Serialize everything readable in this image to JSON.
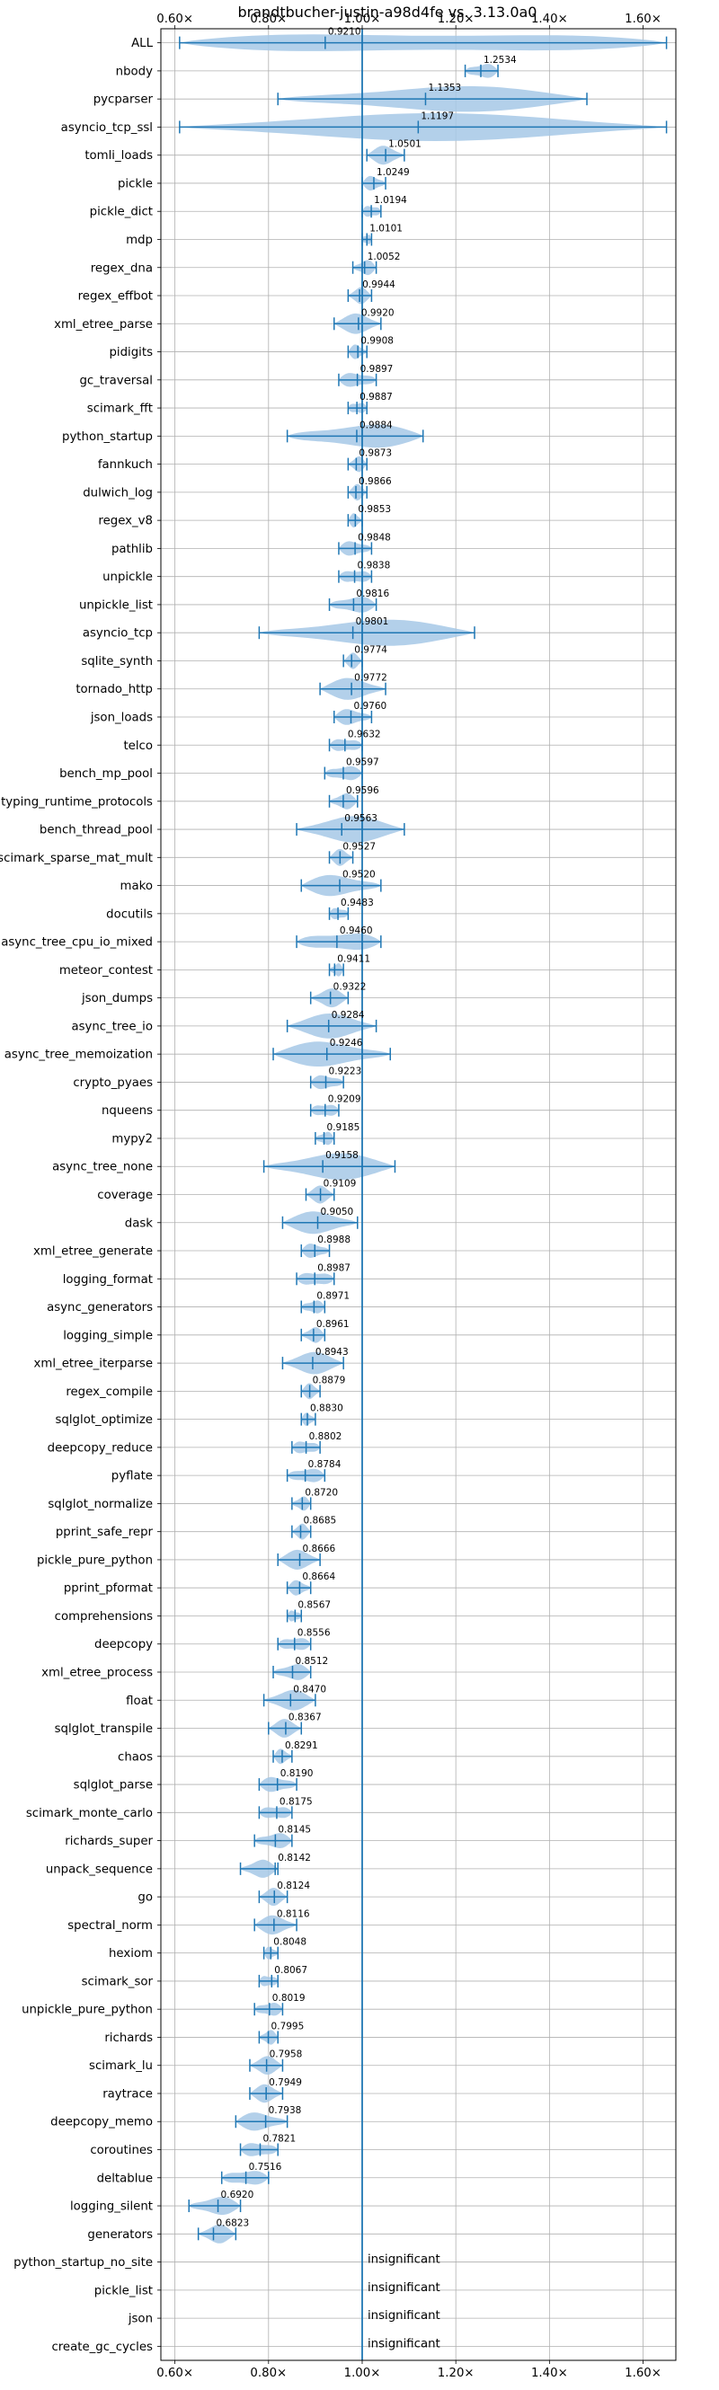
{
  "chart_data": {
    "type": "violin",
    "title": "brandtbucher-justin-a98d4fe vs. 3.13.0a0",
    "xlim": [
      0.57,
      1.67
    ],
    "xticks": [
      "0.60×",
      "0.80×",
      "1.00×",
      "1.20×",
      "1.40×",
      "1.60×"
    ],
    "xtick_values": [
      0.6,
      0.8,
      1.0,
      1.2,
      1.4,
      1.6
    ],
    "reference_line": 1.0,
    "grid": true,
    "insignificant_label": "insignificant",
    "benchmarks": [
      {
        "name": "ALL",
        "mean": 0.921,
        "label": "0.9210",
        "min": 0.61,
        "max": 1.65
      },
      {
        "name": "nbody",
        "mean": 1.2534,
        "label": "1.2534",
        "min": 1.22,
        "max": 1.29
      },
      {
        "name": "pycparser",
        "mean": 1.1353,
        "label": "1.1353",
        "min": 0.82,
        "max": 1.48
      },
      {
        "name": "asyncio_tcp_ssl",
        "mean": 1.1197,
        "label": "1.1197",
        "min": 0.61,
        "max": 1.65
      },
      {
        "name": "tomli_loads",
        "mean": 1.0501,
        "label": "1.0501",
        "min": 1.01,
        "max": 1.09
      },
      {
        "name": "pickle",
        "mean": 1.0249,
        "label": "1.0249",
        "min": 1.0,
        "max": 1.05
      },
      {
        "name": "pickle_dict",
        "mean": 1.0194,
        "label": "1.0194",
        "min": 1.0,
        "max": 1.04
      },
      {
        "name": "mdp",
        "mean": 1.0101,
        "label": "1.0101",
        "min": 1.0,
        "max": 1.02
      },
      {
        "name": "regex_dna",
        "mean": 1.0052,
        "label": "1.0052",
        "min": 0.98,
        "max": 1.03
      },
      {
        "name": "regex_effbot",
        "mean": 0.9944,
        "label": "0.9944",
        "min": 0.97,
        "max": 1.02
      },
      {
        "name": "xml_etree_parse",
        "mean": 0.992,
        "label": "0.9920",
        "min": 0.94,
        "max": 1.04
      },
      {
        "name": "pidigits",
        "mean": 0.9908,
        "label": "0.9908",
        "min": 0.97,
        "max": 1.01
      },
      {
        "name": "gc_traversal",
        "mean": 0.9897,
        "label": "0.9897",
        "min": 0.95,
        "max": 1.03
      },
      {
        "name": "scimark_fft",
        "mean": 0.9887,
        "label": "0.9887",
        "min": 0.97,
        "max": 1.01
      },
      {
        "name": "python_startup",
        "mean": 0.9884,
        "label": "0.9884",
        "min": 0.84,
        "max": 1.13
      },
      {
        "name": "fannkuch",
        "mean": 0.9873,
        "label": "0.9873",
        "min": 0.97,
        "max": 1.01
      },
      {
        "name": "dulwich_log",
        "mean": 0.9866,
        "label": "0.9866",
        "min": 0.97,
        "max": 1.01
      },
      {
        "name": "regex_v8",
        "mean": 0.9853,
        "label": "0.9853",
        "min": 0.97,
        "max": 1.0
      },
      {
        "name": "pathlib",
        "mean": 0.9848,
        "label": "0.9848",
        "min": 0.95,
        "max": 1.02
      },
      {
        "name": "unpickle",
        "mean": 0.9838,
        "label": "0.9838",
        "min": 0.95,
        "max": 1.02
      },
      {
        "name": "unpickle_list",
        "mean": 0.9816,
        "label": "0.9816",
        "min": 0.93,
        "max": 1.03
      },
      {
        "name": "asyncio_tcp",
        "mean": 0.9801,
        "label": "0.9801",
        "min": 0.78,
        "max": 1.24
      },
      {
        "name": "sqlite_synth",
        "mean": 0.9774,
        "label": "0.9774",
        "min": 0.96,
        "max": 1.0
      },
      {
        "name": "tornado_http",
        "mean": 0.9772,
        "label": "0.9772",
        "min": 0.91,
        "max": 1.05
      },
      {
        "name": "json_loads",
        "mean": 0.976,
        "label": "0.9760",
        "min": 0.94,
        "max": 1.02
      },
      {
        "name": "telco",
        "mean": 0.9632,
        "label": "0.9632",
        "min": 0.93,
        "max": 1.0
      },
      {
        "name": "bench_mp_pool",
        "mean": 0.9597,
        "label": "0.9597",
        "min": 0.92,
        "max": 1.0
      },
      {
        "name": "typing_runtime_protocols",
        "mean": 0.9596,
        "label": "0.9596",
        "min": 0.93,
        "max": 0.99
      },
      {
        "name": "bench_thread_pool",
        "mean": 0.9563,
        "label": "0.9563",
        "min": 0.86,
        "max": 1.09
      },
      {
        "name": "scimark_sparse_mat_mult",
        "mean": 0.9527,
        "label": "0.9527",
        "min": 0.93,
        "max": 0.98
      },
      {
        "name": "mako",
        "mean": 0.952,
        "label": "0.9520",
        "min": 0.87,
        "max": 1.04
      },
      {
        "name": "docutils",
        "mean": 0.9483,
        "label": "0.9483",
        "min": 0.93,
        "max": 0.97
      },
      {
        "name": "async_tree_cpu_io_mixed",
        "mean": 0.946,
        "label": "0.9460",
        "min": 0.86,
        "max": 1.04
      },
      {
        "name": "meteor_contest",
        "mean": 0.9411,
        "label": "0.9411",
        "min": 0.93,
        "max": 0.96
      },
      {
        "name": "json_dumps",
        "mean": 0.9322,
        "label": "0.9322",
        "min": 0.89,
        "max": 0.97
      },
      {
        "name": "async_tree_io",
        "mean": 0.9284,
        "label": "0.9284",
        "min": 0.84,
        "max": 1.03
      },
      {
        "name": "async_tree_memoization",
        "mean": 0.9246,
        "label": "0.9246",
        "min": 0.81,
        "max": 1.06
      },
      {
        "name": "crypto_pyaes",
        "mean": 0.9223,
        "label": "0.9223",
        "min": 0.89,
        "max": 0.96
      },
      {
        "name": "nqueens",
        "mean": 0.9209,
        "label": "0.9209",
        "min": 0.89,
        "max": 0.95
      },
      {
        "name": "mypy2",
        "mean": 0.9185,
        "label": "0.9185",
        "min": 0.9,
        "max": 0.94
      },
      {
        "name": "async_tree_none",
        "mean": 0.9158,
        "label": "0.9158",
        "min": 0.79,
        "max": 1.07
      },
      {
        "name": "coverage",
        "mean": 0.9109,
        "label": "0.9109",
        "min": 0.88,
        "max": 0.94
      },
      {
        "name": "dask",
        "mean": 0.905,
        "label": "0.9050",
        "min": 0.83,
        "max": 0.99
      },
      {
        "name": "xml_etree_generate",
        "mean": 0.8988,
        "label": "0.8988",
        "min": 0.87,
        "max": 0.93
      },
      {
        "name": "logging_format",
        "mean": 0.8987,
        "label": "0.8987",
        "min": 0.86,
        "max": 0.94
      },
      {
        "name": "async_generators",
        "mean": 0.8971,
        "label": "0.8971",
        "min": 0.87,
        "max": 0.92
      },
      {
        "name": "logging_simple",
        "mean": 0.8961,
        "label": "0.8961",
        "min": 0.87,
        "max": 0.92
      },
      {
        "name": "xml_etree_iterparse",
        "mean": 0.8943,
        "label": "0.8943",
        "min": 0.83,
        "max": 0.96
      },
      {
        "name": "regex_compile",
        "mean": 0.8879,
        "label": "0.8879",
        "min": 0.87,
        "max": 0.91
      },
      {
        "name": "sqlglot_optimize",
        "mean": 0.883,
        "label": "0.8830",
        "min": 0.87,
        "max": 0.9
      },
      {
        "name": "deepcopy_reduce",
        "mean": 0.8802,
        "label": "0.8802",
        "min": 0.85,
        "max": 0.91
      },
      {
        "name": "pyflate",
        "mean": 0.8784,
        "label": "0.8784",
        "min": 0.84,
        "max": 0.92
      },
      {
        "name": "sqlglot_normalize",
        "mean": 0.872,
        "label": "0.8720",
        "min": 0.85,
        "max": 0.89
      },
      {
        "name": "pprint_safe_repr",
        "mean": 0.8685,
        "label": "0.8685",
        "min": 0.85,
        "max": 0.89
      },
      {
        "name": "pickle_pure_python",
        "mean": 0.8666,
        "label": "0.8666",
        "min": 0.82,
        "max": 0.91
      },
      {
        "name": "pprint_pformat",
        "mean": 0.8664,
        "label": "0.8664",
        "min": 0.84,
        "max": 0.89
      },
      {
        "name": "comprehensions",
        "mean": 0.8567,
        "label": "0.8567",
        "min": 0.84,
        "max": 0.87
      },
      {
        "name": "deepcopy",
        "mean": 0.8556,
        "label": "0.8556",
        "min": 0.82,
        "max": 0.89
      },
      {
        "name": "xml_etree_process",
        "mean": 0.8512,
        "label": "0.8512",
        "min": 0.81,
        "max": 0.89
      },
      {
        "name": "float",
        "mean": 0.847,
        "label": "0.8470",
        "min": 0.79,
        "max": 0.9
      },
      {
        "name": "sqlglot_transpile",
        "mean": 0.8367,
        "label": "0.8367",
        "min": 0.8,
        "max": 0.87
      },
      {
        "name": "chaos",
        "mean": 0.8291,
        "label": "0.8291",
        "min": 0.81,
        "max": 0.85
      },
      {
        "name": "sqlglot_parse",
        "mean": 0.819,
        "label": "0.8190",
        "min": 0.78,
        "max": 0.86
      },
      {
        "name": "scimark_monte_carlo",
        "mean": 0.8175,
        "label": "0.8175",
        "min": 0.78,
        "max": 0.85
      },
      {
        "name": "richards_super",
        "mean": 0.8145,
        "label": "0.8145",
        "min": 0.77,
        "max": 0.85
      },
      {
        "name": "unpack_sequence",
        "mean": 0.8142,
        "label": "0.8142",
        "min": 0.74,
        "max": 0.82
      },
      {
        "name": "go",
        "mean": 0.8124,
        "label": "0.8124",
        "min": 0.78,
        "max": 0.84
      },
      {
        "name": "spectral_norm",
        "mean": 0.8116,
        "label": "0.8116",
        "min": 0.77,
        "max": 0.86
      },
      {
        "name": "hexiom",
        "mean": 0.8048,
        "label": "0.8048",
        "min": 0.79,
        "max": 0.82
      },
      {
        "name": "scimark_sor",
        "mean": 0.8067,
        "label": "0.8067",
        "min": 0.78,
        "max": 0.82
      },
      {
        "name": "unpickle_pure_python",
        "mean": 0.8019,
        "label": "0.8019",
        "min": 0.77,
        "max": 0.83
      },
      {
        "name": "richards",
        "mean": 0.7995,
        "label": "0.7995",
        "min": 0.78,
        "max": 0.82
      },
      {
        "name": "scimark_lu",
        "mean": 0.7958,
        "label": "0.7958",
        "min": 0.76,
        "max": 0.83
      },
      {
        "name": "raytrace",
        "mean": 0.7949,
        "label": "0.7949",
        "min": 0.76,
        "max": 0.83
      },
      {
        "name": "deepcopy_memo",
        "mean": 0.7938,
        "label": "0.7938",
        "min": 0.73,
        "max": 0.84
      },
      {
        "name": "coroutines",
        "mean": 0.7821,
        "label": "0.7821",
        "min": 0.74,
        "max": 0.82
      },
      {
        "name": "deltablue",
        "mean": 0.7516,
        "label": "0.7516",
        "min": 0.7,
        "max": 0.8
      },
      {
        "name": "logging_silent",
        "mean": 0.692,
        "label": "0.6920",
        "min": 0.63,
        "max": 0.74
      },
      {
        "name": "generators",
        "mean": 0.6823,
        "label": "0.6823",
        "min": 0.65,
        "max": 0.73
      },
      {
        "name": "python_startup_no_site",
        "insignificant": true
      },
      {
        "name": "pickle_list",
        "insignificant": true
      },
      {
        "name": "json",
        "insignificant": true
      },
      {
        "name": "create_gc_cycles",
        "insignificant": true
      }
    ]
  }
}
